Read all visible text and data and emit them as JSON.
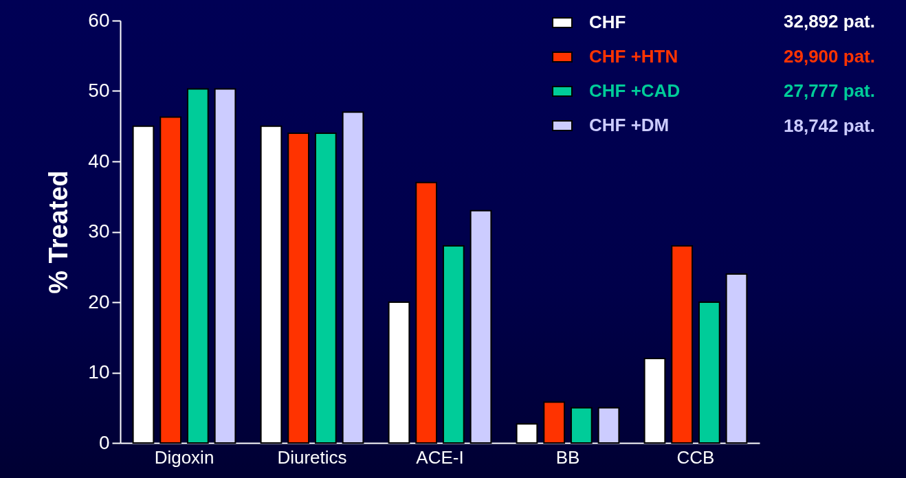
{
  "chart_data": {
    "type": "bar",
    "ylabel": "% Treated",
    "categories": [
      "Digoxin",
      "Diuretics",
      "ACE-I",
      "BB",
      "CCB"
    ],
    "series": [
      {
        "name": "CHF",
        "color": "#ffffff",
        "values": [
          45,
          45,
          20,
          2.7,
          12
        ]
      },
      {
        "name": "CHF +HTN",
        "color": "#ff3300",
        "values": [
          46.3,
          44,
          37,
          5.8,
          28
        ]
      },
      {
        "name": "CHF +CAD",
        "color": "#00cc99",
        "values": [
          50.3,
          44,
          28,
          5,
          20
        ]
      },
      {
        "name": "CHF +DM",
        "color": "#ccccff",
        "values": [
          50.3,
          47,
          33,
          5,
          24
        ]
      }
    ],
    "annotations": [
      "32,892 pat.",
      "29,900 pat.",
      "27,777 pat.",
      "18,742 pat."
    ],
    "ylim": [
      0,
      60
    ],
    "yticks": [
      0,
      10,
      20,
      30,
      40,
      50,
      60
    ],
    "grid": false,
    "legend": "top right"
  }
}
